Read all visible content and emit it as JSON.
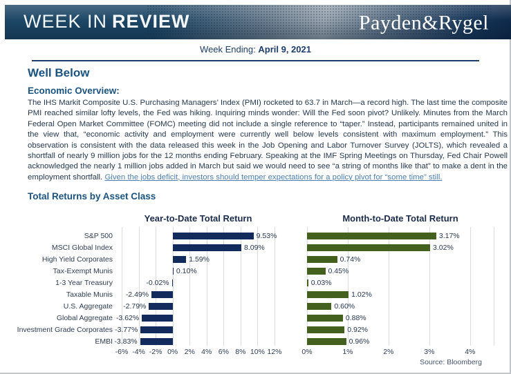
{
  "header": {
    "title_regular": "WEEK IN",
    "title_bold": "REVIEW",
    "logo": "Payden&Rygel"
  },
  "subheader": {
    "week_ending_label": "Week Ending:",
    "week_ending_date": "April 9, 2021"
  },
  "article": {
    "headline": "Well Below",
    "section_title": "Economic Overview:",
    "body": "The IHS Markit Composite U.S. Purchasing Managers’ Index (PMI) rocketed to 63.7 in March—a record high. The last time the composite PMI reached similar lofty levels, the Fed was hiking. Inquiring minds wonder: Will the Fed soon pivot? Unlikely. Minutes from the March Federal Open Market Committee (FOMC) meeting did not include a single reference to “taper.” Instead, participants remained united in the view that, “economic activity and employment were currently well below levels consistent with maximum employment.” This observation is consistent with the data released this week in the Job Opening and Labor Turnover Survey (JOLTS), which revealed a shortfall of nearly 9 million jobs for the 12 months ending February. Speaking at the IMF Spring Meetings on Thursday, Fed Chair Powell acknowledged the nearly 1 million jobs added in March but said we would need to see “a string of months like that” to make a dent in the employment shortfall.",
    "link_sentence": "Given the jobs deficit, investors should temper expectations for a policy pivot for “some time” still."
  },
  "returns_section": {
    "title": "Total Returns by Asset Class",
    "source": "Source: Bloomberg"
  },
  "chart_data": [
    {
      "type": "bar",
      "orientation": "horizontal",
      "title": "Year-to-Date Total Return",
      "categories": [
        "S&P 500",
        "MSCI Global Index",
        "High Yield Corporates",
        "Tax-Exempt Munis",
        "1-3 Year Treasury",
        "Taxable Munis",
        "U.S. Aggregate",
        "Global Aggregate",
        "Investment Grade Corporates",
        "EMBI"
      ],
      "values": [
        9.53,
        8.09,
        1.59,
        0.1,
        -0.02,
        -2.49,
        -2.79,
        -3.62,
        -3.77,
        -3.83
      ],
      "labels": [
        "9.53%",
        "8.09%",
        "1.59%",
        "0.10%",
        "-0.02%",
        "-2.49%",
        "-2.79%",
        "-3.62%",
        "-3.77%",
        "-3.83%"
      ],
      "xlim": [
        -6,
        12
      ],
      "tick_values": [
        -6,
        -4,
        -2,
        0,
        2,
        4,
        6,
        8,
        10,
        12
      ],
      "ticks": [
        "-6%",
        "-4%",
        "-2%",
        "0%",
        "2%",
        "4%",
        "6%",
        "8%",
        "10%",
        "12%"
      ],
      "bar_color": "#132a5c",
      "grid": true,
      "legend": false
    },
    {
      "type": "bar",
      "orientation": "horizontal",
      "title": "Month-to-Date Total Return",
      "categories": [
        "S&P 500",
        "MSCI Global Index",
        "High Yield Corporates",
        "Tax-Exempt Munis",
        "1-3 Year Treasury",
        "Taxable Munis",
        "U.S. Aggregate",
        "Global Aggregate",
        "Investment Grade Corporates",
        "EMBI"
      ],
      "values": [
        3.17,
        3.02,
        0.74,
        0.45,
        0.03,
        1.02,
        0.6,
        0.88,
        0.92,
        0.96
      ],
      "labels": [
        "3.17%",
        "3.02%",
        "0.74%",
        "0.45%",
        "0.03%",
        "1.02%",
        "0.60%",
        "0.88%",
        "0.92%",
        "0.96%"
      ],
      "xlim": [
        0,
        4.58
      ],
      "tick_values": [
        0,
        1,
        2,
        3,
        4
      ],
      "ticks": [
        "0%",
        "1%",
        "2%",
        "3%",
        "4%"
      ],
      "bar_color": "#43601f",
      "grid": true,
      "legend": false
    }
  ]
}
